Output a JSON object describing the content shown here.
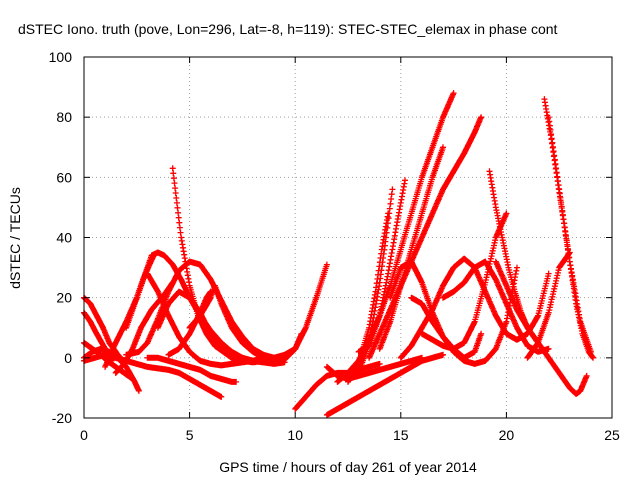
{
  "chart_data": {
    "type": "scatter",
    "title": "dSTEC Iono. truth (pove, Lon=296, Lat=-8, h=119): STEC-STEC_elemax in phase cont",
    "xlabel": "GPS time / hours of day 261 of year 2014",
    "ylabel": "dSTEC  / TECUs",
    "xlim": [
      0,
      25
    ],
    "ylim": [
      -20,
      100
    ],
    "xticks": [
      0,
      5,
      10,
      15,
      20,
      25
    ],
    "yticks": [
      -20,
      0,
      20,
      40,
      60,
      80,
      100
    ],
    "grid": true,
    "marker": "plus",
    "color": "#ff0000",
    "series": [
      {
        "x": [
          0.0,
          0.4,
          0.8,
          1.2,
          1.6,
          2.0,
          2.4,
          2.6
        ],
        "y": [
          0,
          2,
          3,
          2,
          0,
          -3,
          -8,
          -11
        ]
      },
      {
        "x": [
          0.0,
          0.4,
          0.8,
          1.1,
          1.5,
          1.9,
          2.3
        ],
        "y": [
          5,
          3,
          1,
          -1,
          -3,
          -5,
          -7
        ]
      },
      {
        "x": [
          0.0,
          0.3,
          0.6,
          0.9,
          1.2,
          1.6,
          2.0
        ],
        "y": [
          20,
          18,
          14,
          10,
          5,
          1,
          -2
        ]
      },
      {
        "x": [
          0.0,
          0.3,
          0.6,
          1.0,
          1.3
        ],
        "y": [
          15,
          12,
          8,
          3,
          -1
        ]
      },
      {
        "x": [
          0.0,
          0.5,
          1.0,
          1.5,
          2.0,
          2.5,
          3.0,
          3.5,
          4.0,
          4.5,
          5.0,
          5.5,
          6.0,
          6.5
        ],
        "y": [
          -1,
          0,
          1,
          0,
          -1,
          -2,
          -3,
          -3.5,
          -4,
          -5,
          -7,
          -9,
          -11,
          -13
        ]
      },
      {
        "x": [
          1.0,
          1.5,
          2.0,
          2.5,
          2.8,
          3.1,
          3.3
        ],
        "y": [
          -3,
          5,
          12,
          20,
          26,
          31,
          34
        ]
      },
      {
        "x": [
          1.5,
          1.9,
          2.3,
          2.7,
          3.2,
          3.8,
          4.2
        ],
        "y": [
          -5,
          -2,
          3,
          10,
          16,
          21,
          25
        ]
      },
      {
        "x": [
          2.0,
          2.5,
          3.0,
          3.2,
          3.5,
          3.8,
          4.2,
          4.6,
          5.0,
          5.5,
          6.0,
          6.5,
          7.0,
          7.5,
          8.0,
          8.5,
          9.0,
          9.5
        ],
        "y": [
          10,
          20,
          30,
          34,
          35,
          34,
          31,
          26,
          20,
          14,
          9,
          5,
          2,
          0,
          -1,
          -1.5,
          -2,
          -1.5
        ]
      },
      {
        "x": [
          2.0,
          2.6,
          3.0,
          3.5,
          4.0,
          4.5,
          5.0,
          5.5,
          6.0,
          6.5,
          7.0,
          7.5,
          8.0,
          8.5,
          9.0
        ],
        "y": [
          1,
          2,
          5,
          13,
          22,
          29,
          32,
          31,
          26,
          19,
          12,
          7,
          3,
          1,
          0
        ]
      },
      {
        "x": [
          3.0,
          3.5,
          4.0,
          4.5,
          5.0,
          5.5,
          6.0,
          6.5,
          7.0,
          7.2
        ],
        "y": [
          0,
          0,
          -1,
          -2,
          -3,
          -4,
          -6,
          -7,
          -8,
          -8
        ]
      },
      {
        "x": [
          3.0,
          3.5,
          4.0,
          4.5,
          5.0,
          5.5,
          6.0,
          6.5,
          7.0,
          7.5,
          8.0,
          8.5
        ],
        "y": [
          28,
          22,
          14,
          7,
          2,
          -1,
          -2,
          -2.5,
          -2,
          -1.5,
          -1,
          0
        ]
      },
      {
        "x": [
          4.2,
          4.6,
          5.0,
          5.4,
          5.8,
          6.2,
          6.6,
          7.0,
          7.5,
          8.0,
          8.5,
          9.0
        ],
        "y": [
          63,
          40,
          24,
          14,
          8,
          4,
          2,
          0,
          -1,
          -1.5,
          -1,
          0
        ]
      },
      {
        "x": [
          3.5,
          4.0,
          4.5,
          5.0,
          5.5,
          6.0,
          6.5,
          7.0,
          7.5,
          8.0,
          8.5,
          9.0,
          9.5,
          10.0
        ],
        "y": [
          10,
          18,
          22,
          20,
          15,
          8,
          3,
          0,
          -1,
          -1,
          -0.5,
          0,
          1,
          3
        ]
      },
      {
        "x": [
          4.0,
          4.5,
          5.0,
          5.5,
          5.8,
          6.0
        ],
        "y": [
          1,
          3,
          8,
          15,
          20,
          22
        ]
      },
      {
        "x": [
          5.0,
          5.5,
          6.0,
          6.2,
          6.5,
          7.0,
          7.5,
          8.0,
          8.5,
          9.0
        ],
        "y": [
          10,
          14,
          20,
          24,
          18,
          10,
          5,
          2,
          0,
          -1
        ]
      },
      {
        "x": [
          6.5,
          7.0,
          7.5,
          8.0,
          8.5,
          9.0,
          9.5,
          10.0,
          10.3
        ],
        "y": [
          3,
          1,
          0,
          -1,
          -1.5,
          -1.5,
          -0.5,
          3,
          8
        ]
      },
      {
        "x": [
          9.5,
          10.0,
          10.5,
          11.0,
          11.5
        ],
        "y": [
          -0.5,
          3,
          10,
          20,
          31
        ]
      },
      {
        "x": [
          10.0,
          10.5,
          11.0,
          11.5,
          12.0,
          12.5,
          13.0,
          13.5,
          14.0
        ],
        "y": [
          -17,
          -13,
          -9,
          -6,
          -5,
          -5,
          -4,
          -3,
          -2
        ]
      },
      {
        "x": [
          11.5,
          12.0,
          12.5,
          13.0,
          13.5,
          14.0,
          14.5,
          15.0,
          15.5,
          16.0,
          16.5,
          17.0
        ],
        "y": [
          -19,
          -17,
          -15,
          -13,
          -11,
          -9,
          -7,
          -5,
          -3,
          -1,
          0,
          1
        ]
      },
      {
        "x": [
          11.5,
          12.0,
          12.5,
          13.0,
          13.5,
          14.0,
          14.5,
          15.0,
          15.5,
          16.0
        ],
        "y": [
          -3,
          -6,
          -7,
          -6,
          -5,
          -4,
          -3,
          -2,
          -1,
          0
        ]
      },
      {
        "x": [
          12.0,
          12.5,
          13.0,
          13.5,
          14.0,
          14.5,
          15.0,
          15.5,
          16.0,
          16.5,
          17.0,
          17.5
        ],
        "y": [
          -8,
          -5,
          -1,
          6,
          14,
          24,
          36,
          48,
          60,
          70,
          80,
          88
        ]
      },
      {
        "x": [
          12.5,
          13.0,
          13.5,
          13.8,
          14.1,
          14.4
        ],
        "y": [
          -8,
          -2,
          10,
          22,
          36,
          48
        ]
      },
      {
        "x": [
          13.0,
          13.5,
          14.0,
          14.3,
          14.6
        ],
        "y": [
          -5,
          5,
          25,
          40,
          56
        ]
      },
      {
        "x": [
          13.0,
          13.5,
          14.0,
          14.4,
          14.8,
          15.2
        ],
        "y": [
          2,
          4,
          14,
          28,
          44,
          59
        ]
      },
      {
        "x": [
          13.5,
          14.0,
          14.5,
          15.0,
          15.5,
          16.0,
          16.5,
          17.0,
          17.5,
          18.0,
          18.5,
          18.8
        ],
        "y": [
          0,
          8,
          16,
          24,
          32,
          40,
          48,
          56,
          62,
          68,
          75,
          80
        ]
      },
      {
        "x": [
          14.0,
          14.5,
          15.0,
          15.5,
          16.0,
          16.5,
          17.0
        ],
        "y": [
          3,
          12,
          24,
          36,
          48,
          60,
          70
        ]
      },
      {
        "x": [
          14.5,
          15.0,
          15.5,
          16.0,
          16.5,
          17.0,
          17.5,
          18.0,
          18.5,
          19.0,
          19.5,
          20.0,
          20.5
        ],
        "y": [
          20,
          30,
          32,
          25,
          15,
          7,
          2,
          -1,
          -2,
          -1,
          3,
          12,
          30
        ]
      },
      {
        "x": [
          15.0,
          15.5,
          16.0,
          16.5,
          17.0,
          17.5,
          18.0,
          18.5,
          19.0,
          19.5,
          20.0,
          20.5,
          21.0,
          21.5,
          22.0
        ],
        "y": [
          0,
          4,
          10,
          16,
          24,
          30,
          33,
          30,
          22,
          14,
          8,
          6,
          8,
          14,
          28
        ]
      },
      {
        "x": [
          15.5,
          16.0,
          16.5,
          17.0,
          17.5,
          18.0,
          18.5,
          18.8
        ],
        "y": [
          20,
          18,
          12,
          7,
          3,
          0,
          2,
          8
        ]
      },
      {
        "x": [
          16.0,
          16.5,
          17.0,
          17.5,
          18.0,
          18.5,
          19.0,
          19.5,
          20.0
        ],
        "y": [
          8,
          6,
          4,
          3,
          5,
          12,
          25,
          40,
          48
        ]
      },
      {
        "x": [
          17.0,
          17.5,
          18.0,
          18.5,
          19.0,
          19.5,
          20.0,
          20.5,
          21.0,
          21.5,
          22.0
        ],
        "y": [
          20,
          22,
          25,
          30,
          32,
          26,
          18,
          10,
          4,
          2,
          3
        ]
      },
      {
        "x": [
          19.2,
          19.5,
          19.8,
          20.1,
          20.4,
          20.7,
          21.0,
          21.5
        ],
        "y": [
          62,
          50,
          40,
          30,
          22,
          15,
          10,
          5
        ]
      },
      {
        "x": [
          19.5,
          20.0,
          20.5,
          21.0,
          21.5,
          22.0,
          22.5,
          23.0,
          23.3,
          23.5,
          23.8
        ],
        "y": [
          32,
          24,
          16,
          10,
          5,
          0,
          -5,
          -10,
          -12,
          -11,
          -6
        ]
      },
      {
        "x": [
          21.8,
          22.1,
          22.4,
          22.7,
          23.0,
          23.3,
          23.6,
          23.9,
          24.1
        ],
        "y": [
          86,
          74,
          60,
          46,
          32,
          18,
          8,
          2,
          0
        ]
      },
      {
        "x": [
          22.0,
          22.5,
          23.0,
          23.5,
          24.0
        ],
        "y": [
          80,
          56,
          32,
          12,
          2
        ]
      },
      {
        "x": [
          21.0,
          21.5,
          22.0,
          22.5,
          23.0
        ],
        "y": [
          0,
          5,
          15,
          30,
          35
        ]
      }
    ]
  }
}
